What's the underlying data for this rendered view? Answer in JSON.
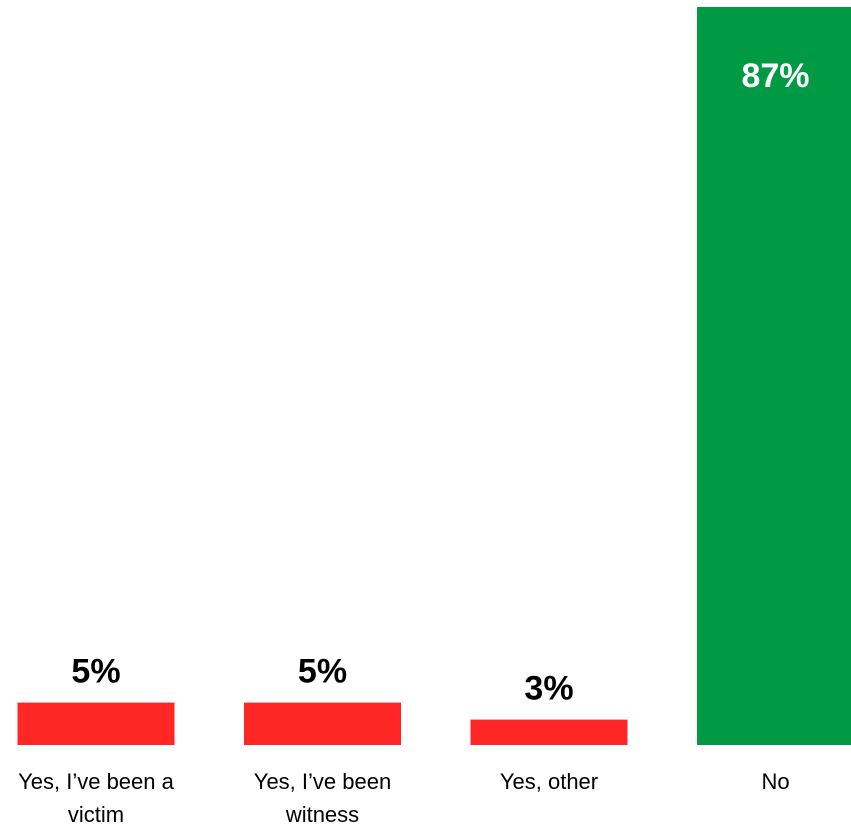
{
  "chart_data": {
    "type": "bar",
    "categories": [
      [
        "Yes, I’ve been a",
        "victim"
      ],
      [
        "Yes, I’ve been",
        "witness"
      ],
      [
        "Yes, other"
      ],
      [
        "No"
      ]
    ],
    "values": [
      5,
      5,
      3,
      87
    ],
    "value_labels": [
      "5%",
      "5%",
      "3%",
      "87%"
    ],
    "bar_colors": [
      "#ff2626",
      "#ff2626",
      "#ff2626",
      "#009a44"
    ],
    "value_label_colors": [
      "#000000",
      "#000000",
      "#000000",
      "#ffffff"
    ],
    "title": "",
    "xlabel": "",
    "ylabel": "",
    "ylim": [
      0,
      87
    ],
    "grid": false,
    "legend": "none"
  }
}
